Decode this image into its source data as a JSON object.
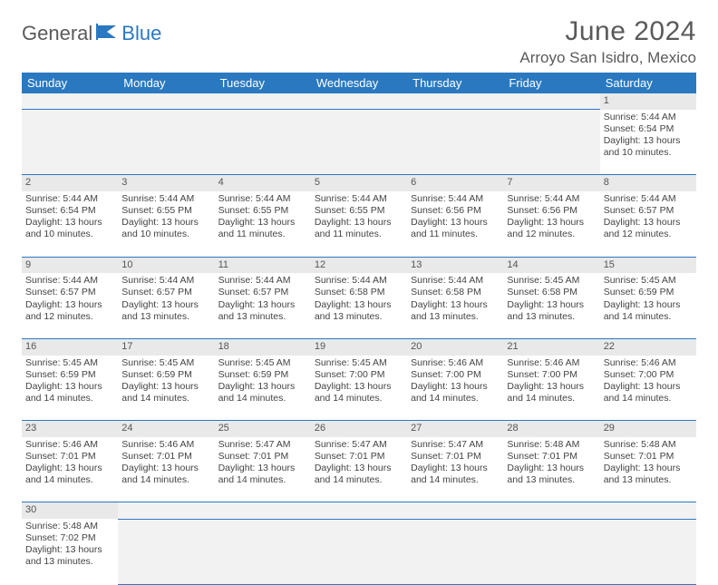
{
  "logo": {
    "part1": "General",
    "part2": "Blue"
  },
  "title": "June 2024",
  "location": "Arroyo San Isidro, Mexico",
  "colors": {
    "header_bg": "#2a79c0",
    "header_text": "#ffffff",
    "logo_gray": "#5a5a5a",
    "logo_blue": "#2a79c0",
    "daynum_bg": "#e9e9e9",
    "blank_bg": "#f2f2f2",
    "cell_border": "#2a79c0",
    "body_text": "#444444"
  },
  "weekdays": [
    "Sunday",
    "Monday",
    "Tuesday",
    "Wednesday",
    "Thursday",
    "Friday",
    "Saturday"
  ],
  "weeks": [
    [
      null,
      null,
      null,
      null,
      null,
      null,
      {
        "d": "1",
        "sr": "5:44 AM",
        "ss": "6:54 PM",
        "dl": "13 hours and 10 minutes."
      }
    ],
    [
      {
        "d": "2",
        "sr": "5:44 AM",
        "ss": "6:54 PM",
        "dl": "13 hours and 10 minutes."
      },
      {
        "d": "3",
        "sr": "5:44 AM",
        "ss": "6:55 PM",
        "dl": "13 hours and 10 minutes."
      },
      {
        "d": "4",
        "sr": "5:44 AM",
        "ss": "6:55 PM",
        "dl": "13 hours and 11 minutes."
      },
      {
        "d": "5",
        "sr": "5:44 AM",
        "ss": "6:55 PM",
        "dl": "13 hours and 11 minutes."
      },
      {
        "d": "6",
        "sr": "5:44 AM",
        "ss": "6:56 PM",
        "dl": "13 hours and 11 minutes."
      },
      {
        "d": "7",
        "sr": "5:44 AM",
        "ss": "6:56 PM",
        "dl": "13 hours and 12 minutes."
      },
      {
        "d": "8",
        "sr": "5:44 AM",
        "ss": "6:57 PM",
        "dl": "13 hours and 12 minutes."
      }
    ],
    [
      {
        "d": "9",
        "sr": "5:44 AM",
        "ss": "6:57 PM",
        "dl": "13 hours and 12 minutes."
      },
      {
        "d": "10",
        "sr": "5:44 AM",
        "ss": "6:57 PM",
        "dl": "13 hours and 13 minutes."
      },
      {
        "d": "11",
        "sr": "5:44 AM",
        "ss": "6:57 PM",
        "dl": "13 hours and 13 minutes."
      },
      {
        "d": "12",
        "sr": "5:44 AM",
        "ss": "6:58 PM",
        "dl": "13 hours and 13 minutes."
      },
      {
        "d": "13",
        "sr": "5:44 AM",
        "ss": "6:58 PM",
        "dl": "13 hours and 13 minutes."
      },
      {
        "d": "14",
        "sr": "5:45 AM",
        "ss": "6:58 PM",
        "dl": "13 hours and 13 minutes."
      },
      {
        "d": "15",
        "sr": "5:45 AM",
        "ss": "6:59 PM",
        "dl": "13 hours and 14 minutes."
      }
    ],
    [
      {
        "d": "16",
        "sr": "5:45 AM",
        "ss": "6:59 PM",
        "dl": "13 hours and 14 minutes."
      },
      {
        "d": "17",
        "sr": "5:45 AM",
        "ss": "6:59 PM",
        "dl": "13 hours and 14 minutes."
      },
      {
        "d": "18",
        "sr": "5:45 AM",
        "ss": "6:59 PM",
        "dl": "13 hours and 14 minutes."
      },
      {
        "d": "19",
        "sr": "5:45 AM",
        "ss": "7:00 PM",
        "dl": "13 hours and 14 minutes."
      },
      {
        "d": "20",
        "sr": "5:46 AM",
        "ss": "7:00 PM",
        "dl": "13 hours and 14 minutes."
      },
      {
        "d": "21",
        "sr": "5:46 AM",
        "ss": "7:00 PM",
        "dl": "13 hours and 14 minutes."
      },
      {
        "d": "22",
        "sr": "5:46 AM",
        "ss": "7:00 PM",
        "dl": "13 hours and 14 minutes."
      }
    ],
    [
      {
        "d": "23",
        "sr": "5:46 AM",
        "ss": "7:01 PM",
        "dl": "13 hours and 14 minutes."
      },
      {
        "d": "24",
        "sr": "5:46 AM",
        "ss": "7:01 PM",
        "dl": "13 hours and 14 minutes."
      },
      {
        "d": "25",
        "sr": "5:47 AM",
        "ss": "7:01 PM",
        "dl": "13 hours and 14 minutes."
      },
      {
        "d": "26",
        "sr": "5:47 AM",
        "ss": "7:01 PM",
        "dl": "13 hours and 14 minutes."
      },
      {
        "d": "27",
        "sr": "5:47 AM",
        "ss": "7:01 PM",
        "dl": "13 hours and 14 minutes."
      },
      {
        "d": "28",
        "sr": "5:48 AM",
        "ss": "7:01 PM",
        "dl": "13 hours and 13 minutes."
      },
      {
        "d": "29",
        "sr": "5:48 AM",
        "ss": "7:01 PM",
        "dl": "13 hours and 13 minutes."
      }
    ],
    [
      {
        "d": "30",
        "sr": "5:48 AM",
        "ss": "7:02 PM",
        "dl": "13 hours and 13 minutes."
      },
      null,
      null,
      null,
      null,
      null,
      null
    ]
  ],
  "labels": {
    "sunrise": "Sunrise: ",
    "sunset": "Sunset: ",
    "daylight": "Daylight: "
  }
}
